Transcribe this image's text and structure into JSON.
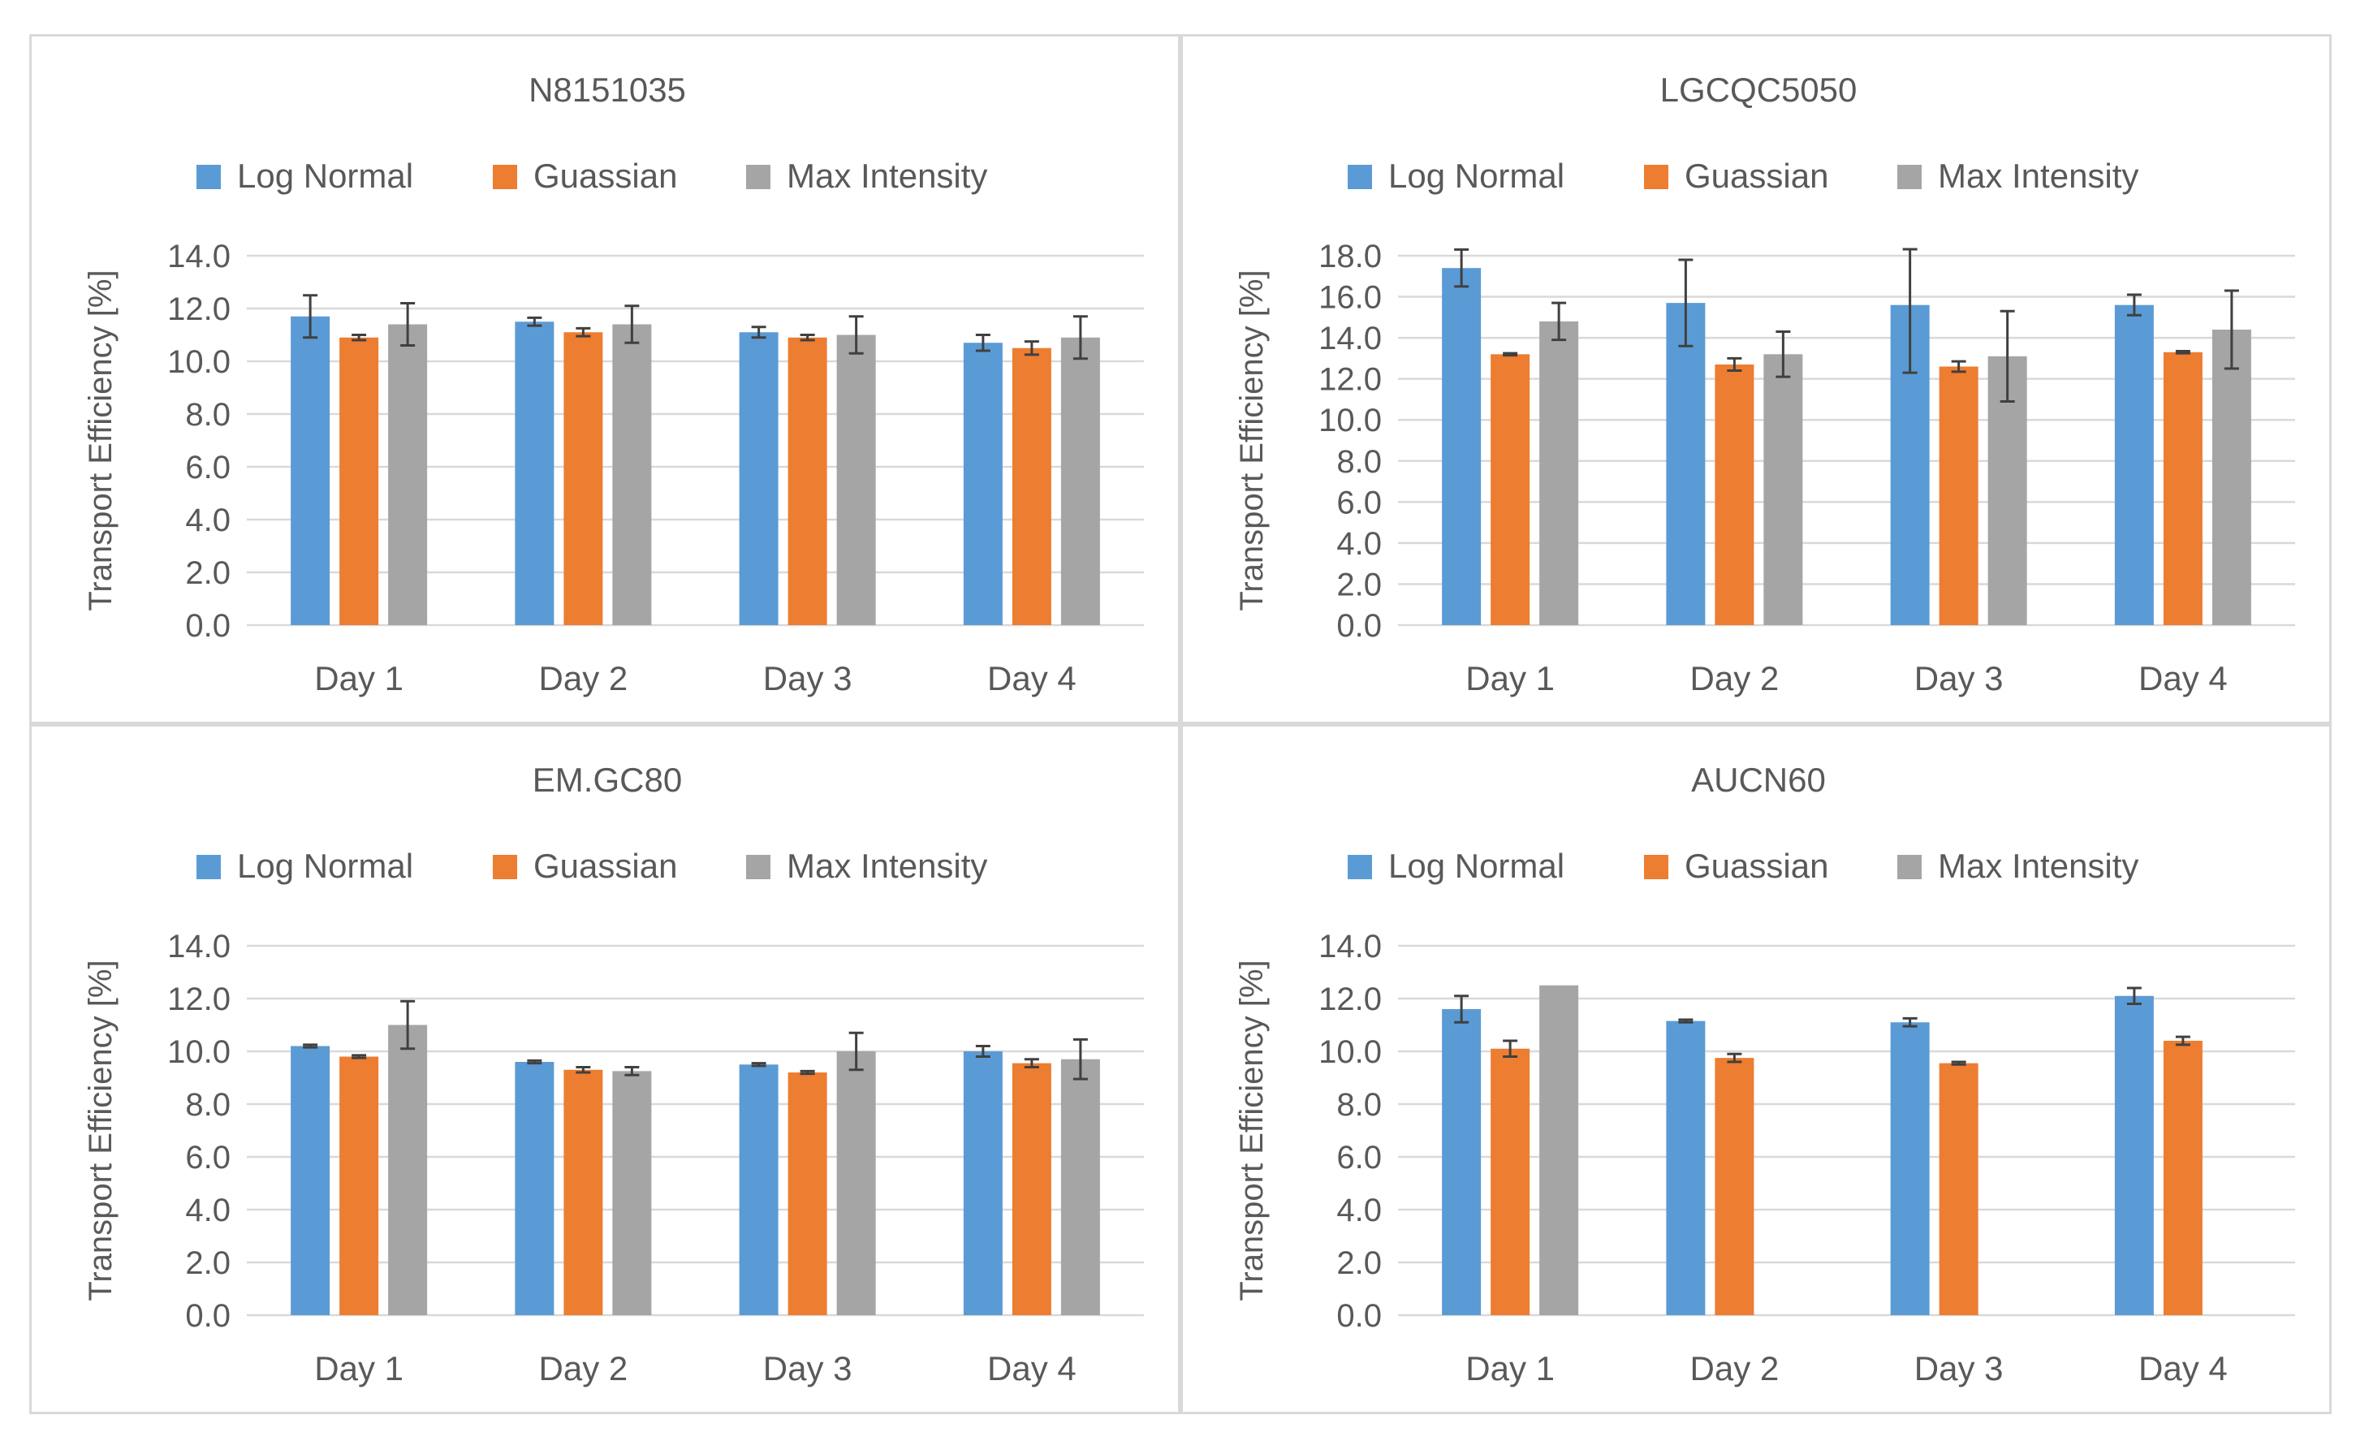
{
  "colors": {
    "log_normal": "#5b9bd5",
    "gaussian": "#ed7d31",
    "max_intensity": "#a5a5a5",
    "grid": "#d9d9d9",
    "text": "#595959",
    "errorbar": "#404040"
  },
  "chart_data": [
    {
      "type": "bar",
      "title": "N8151035",
      "categories": [
        "Day 1",
        "Day 2",
        "Day 3",
        "Day 4"
      ],
      "ylabel": "Transport Efficiency [%]",
      "xlabel": "",
      "ylim": [
        0,
        14
      ],
      "yticks": [
        "0.0",
        "2.0",
        "4.0",
        "6.0",
        "8.0",
        "10.0",
        "12.0",
        "14.0"
      ],
      "legend": "top",
      "series": [
        {
          "name": "Log Normal",
          "values": [
            11.7,
            11.5,
            11.1,
            10.7
          ],
          "errors": [
            0.8,
            0.15,
            0.2,
            0.3
          ]
        },
        {
          "name": "Guassian",
          "values": [
            10.9,
            11.1,
            10.9,
            10.5
          ],
          "errors": [
            0.1,
            0.15,
            0.1,
            0.25
          ]
        },
        {
          "name": "Max Intensity",
          "values": [
            11.4,
            11.4,
            11.0,
            10.9
          ],
          "errors": [
            0.8,
            0.7,
            0.7,
            0.8
          ]
        }
      ]
    },
    {
      "type": "bar",
      "title": "LGCQC5050",
      "categories": [
        "Day 1",
        "Day 2",
        "Day 3",
        "Day 4"
      ],
      "ylabel": "Transport Efficiency [%]",
      "xlabel": "",
      "ylim": [
        0,
        18
      ],
      "yticks": [
        "0.0",
        "2.0",
        "4.0",
        "6.0",
        "8.0",
        "10.0",
        "12.0",
        "14.0",
        "16.0",
        "18.0"
      ],
      "legend": "top",
      "series": [
        {
          "name": "Log Normal",
          "values": [
            17.4,
            15.7,
            15.6,
            15.6
          ],
          "errors": [
            0.9,
            2.1,
            3.3,
            0.5
          ]
        },
        {
          "name": "Guassian",
          "values": [
            13.2,
            12.7,
            12.6,
            13.3
          ],
          "errors": [
            0.05,
            0.3,
            0.25,
            0.05
          ]
        },
        {
          "name": "Max Intensity",
          "values": [
            14.8,
            13.2,
            13.1,
            14.4
          ],
          "errors": [
            0.9,
            1.1,
            2.2,
            1.9
          ]
        }
      ]
    },
    {
      "type": "bar",
      "title": "EM.GC80",
      "categories": [
        "Day 1",
        "Day 2",
        "Day 3",
        "Day 4"
      ],
      "ylabel": "Transport Efficiency [%]",
      "xlabel": "",
      "ylim": [
        0,
        14
      ],
      "yticks": [
        "0.0",
        "2.0",
        "4.0",
        "6.0",
        "8.0",
        "10.0",
        "12.0",
        "14.0"
      ],
      "legend": "top",
      "series": [
        {
          "name": "Log Normal",
          "values": [
            10.2,
            9.6,
            9.5,
            10.0
          ],
          "errors": [
            0.05,
            0.05,
            0.05,
            0.2
          ]
        },
        {
          "name": "Guassian",
          "values": [
            9.8,
            9.3,
            9.2,
            9.55
          ],
          "errors": [
            0.05,
            0.1,
            0.05,
            0.15
          ]
        },
        {
          "name": "Max Intensity",
          "values": [
            11.0,
            9.25,
            10.0,
            9.7
          ],
          "errors": [
            0.9,
            0.15,
            0.7,
            0.75
          ]
        }
      ]
    },
    {
      "type": "bar",
      "title": "AUCN60",
      "categories": [
        "Day 1",
        "Day 2",
        "Day 3",
        "Day 4"
      ],
      "ylabel": "Transport Efficiency [%]",
      "xlabel": "",
      "ylim": [
        0,
        14
      ],
      "yticks": [
        "0.0",
        "2.0",
        "4.0",
        "6.0",
        "8.0",
        "10.0",
        "12.0",
        "14.0"
      ],
      "legend": "top",
      "series": [
        {
          "name": "Log Normal",
          "values": [
            11.6,
            11.15,
            11.1,
            12.1
          ],
          "errors": [
            0.5,
            0.05,
            0.15,
            0.3
          ]
        },
        {
          "name": "Guassian",
          "values": [
            10.1,
            9.75,
            9.55,
            10.4
          ],
          "errors": [
            0.3,
            0.15,
            0.05,
            0.15
          ]
        },
        {
          "name": "Max Intensity",
          "values": [
            12.5,
            null,
            null,
            null
          ],
          "errors": [
            0,
            null,
            null,
            null
          ]
        }
      ]
    }
  ]
}
